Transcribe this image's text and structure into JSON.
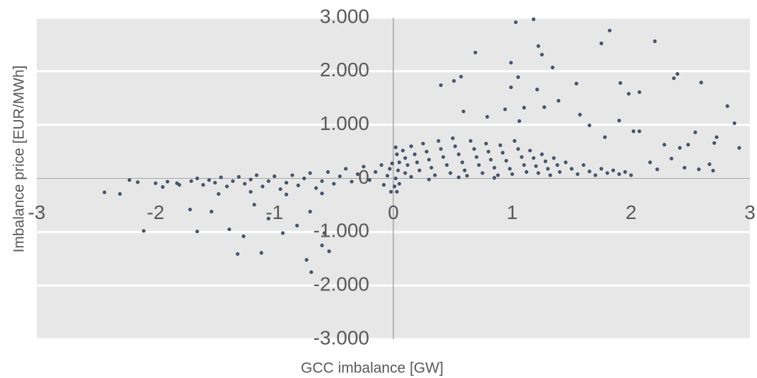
{
  "chart_data": {
    "type": "scatter",
    "x_label": "GCC imbalance [GW]",
    "y_label": "Imbalance price [EUR/MWh]",
    "color": "#44546a",
    "grid": true,
    "xlim": [
      -3,
      3
    ],
    "xticks": [
      -3,
      -2,
      -1,
      0,
      1,
      2,
      3
    ],
    "ylim": [
      -3000,
      3000
    ],
    "yticks": [
      {
        "value": -3000,
        "label": "-3.000"
      },
      {
        "value": -2000,
        "label": "-2.000"
      },
      {
        "value": -1000,
        "label": "-1.000"
      },
      0,
      {
        "value": 1000,
        "label": "1.000"
      },
      {
        "value": 2000,
        "label": "2.000"
      },
      {
        "value": 3000,
        "label": "3.000"
      }
    ],
    "x": [
      1.03,
      1.18,
      1.82,
      2.2,
      1.75,
      1.22,
      1.25,
      0.69,
      0.99,
      1.34,
      2.39,
      2.36,
      0.57,
      0.51,
      1.05,
      2.59,
      1.91,
      1.54,
      0.4,
      0.99,
      1.21,
      1.98,
      2.07,
      2.81,
      2.87,
      2.91,
      2.7,
      2.72,
      2.54,
      2.02,
      2.07,
      1.78,
      1.65,
      1.57,
      0.59,
      0.94,
      1.1,
      1.27,
      1.39,
      0.79,
      1.06,
      1.9,
      2.34,
      2.57,
      2.69,
      2.45,
      2.22,
      2.66,
      2.41,
      2.28,
      2.48,
      2.16,
      -2.43,
      -2.3,
      -2.1,
      -1.65,
      -1.31,
      -1.11,
      -0.73,
      -0.69,
      -0.54,
      -0.6,
      -1.26,
      -1.38,
      -1.71,
      -2.22,
      -2.15,
      -1.94,
      -1.82,
      -1.53,
      -1.05,
      -0.81,
      -0.7,
      -0.93,
      -0.58,
      -1.47,
      -1.17,
      0.02,
      0.03,
      0.05,
      0.04,
      0.02,
      0.01,
      0.03,
      0.05,
      0.08,
      0.1,
      0.12,
      0.1,
      0.15,
      0.18,
      0.2,
      0.22,
      0.25,
      0.28,
      0.3,
      0.32,
      0.35,
      0.38,
      0.4,
      0.42,
      0.45,
      0.48,
      0.5,
      0.52,
      0.55,
      0.58,
      0.6,
      0.62,
      0.65,
      0.68,
      0.7,
      0.72,
      0.75,
      0.78,
      0.8,
      0.82,
      0.85,
      0.88,
      0.9,
      0.92,
      0.95,
      0.98,
      1.0,
      1.02,
      1.05,
      1.08,
      1.1,
      1.12,
      1.15,
      1.18,
      1.2,
      1.22,
      1.25,
      1.28,
      1.3,
      1.32,
      1.35,
      1.38,
      1.4,
      1.45,
      1.5,
      1.55,
      1.6,
      1.65,
      1.7,
      1.75,
      1.8,
      1.85,
      1.9,
      1.95,
      2.0,
      0.15,
      0.3,
      0.55,
      0.85,
      -1.7,
      -1.65,
      -1.6,
      -1.55,
      -1.5,
      -1.45,
      -1.4,
      -1.35,
      -1.3,
      -1.25,
      -1.2,
      -1.15,
      -1.1,
      -1.05,
      -1.0,
      -0.95,
      -0.9,
      -0.85,
      -0.8,
      -0.75,
      -0.7,
      -0.65,
      -0.6,
      -0.55,
      -0.5,
      -0.45,
      -0.4,
      -0.35,
      -0.3,
      -0.25,
      -0.2,
      -0.15,
      -0.1,
      -0.08,
      -0.05,
      -0.03,
      -0.02,
      -0.01,
      -0.9,
      -1.2,
      -0.6,
      -1.8,
      -1.9,
      -2.0
    ],
    "y": [
      2915,
      2970,
      2760,
      2560,
      2520,
      2470,
      2310,
      2350,
      2160,
      2070,
      1950,
      1870,
      1900,
      1820,
      1890,
      1790,
      1780,
      1770,
      1740,
      1700,
      1660,
      1580,
      1610,
      1350,
      1030,
      570,
      660,
      770,
      860,
      880,
      880,
      770,
      990,
      1190,
      1250,
      1290,
      1320,
      1330,
      1450,
      1150,
      1070,
      1080,
      370,
      170,
      145,
      200,
      170,
      265,
      570,
      630,
      630,
      300,
      -260,
      -290,
      -980,
      -990,
      -1410,
      -1390,
      -1520,
      -1750,
      -1360,
      -1250,
      -1080,
      -950,
      -580,
      -30,
      -70,
      -160,
      -90,
      -620,
      -750,
      -880,
      -620,
      -1020,
      -1020,
      -290,
      -490,
      580,
      450,
      300,
      150,
      0,
      -150,
      -250,
      -100,
      520,
      380,
      250,
      100,
      600,
      450,
      300,
      150,
      650,
      500,
      350,
      200,
      60,
      700,
      550,
      400,
      250,
      100,
      750,
      600,
      450,
      300,
      150,
      50,
      700,
      550,
      400,
      250,
      100,
      650,
      500,
      350,
      200,
      60,
      620,
      480,
      330,
      180,
      80,
      700,
      550,
      400,
      250,
      120,
      520,
      380,
      230,
      100,
      450,
      320,
      180,
      60,
      380,
      250,
      120,
      300,
      180,
      80,
      250,
      130,
      60,
      180,
      100,
      150,
      80,
      120,
      60,
      30,
      -20,
      20,
      10,
      -50,
      0,
      -120,
      -30,
      -80,
      20,
      -150,
      -50,
      30,
      -100,
      -20,
      60,
      -150,
      -50,
      40,
      -200,
      -80,
      60,
      -130,
      0,
      100,
      -180,
      -50,
      120,
      -100,
      40,
      180,
      -60,
      80,
      220,
      -30,
      120,
      250,
      -120,
      50,
      180,
      -250,
      280,
      -300,
      -250,
      -280,
      -120,
      -60,
      -90
    ]
  }
}
